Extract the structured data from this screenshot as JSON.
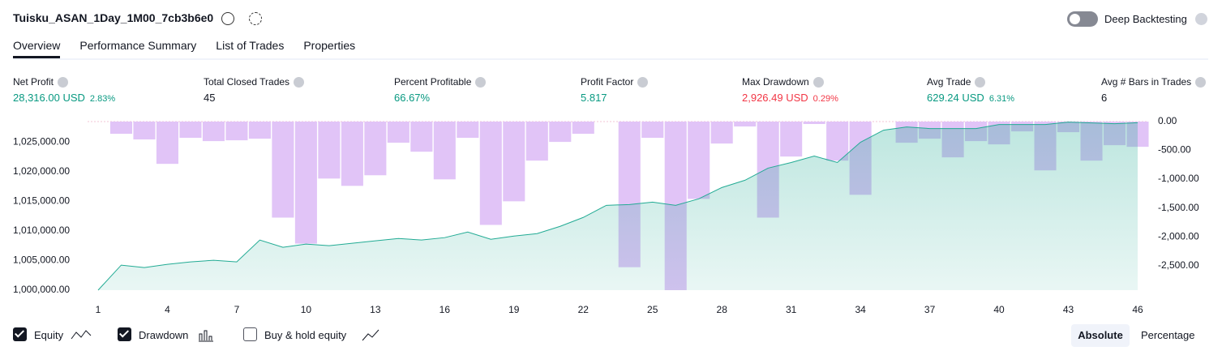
{
  "header": {
    "title": "Tuisku_ASAN_1Day_1M00_7cb3b6e0",
    "deep_backtesting": "Deep Backtesting"
  },
  "tabs": [
    "Overview",
    "Performance Summary",
    "List of Trades",
    "Properties"
  ],
  "metrics": [
    {
      "label": "Net Profit",
      "value": "28,316.00 USD",
      "percent": "2.83%",
      "color": "#089981"
    },
    {
      "label": "Total Closed Trades",
      "value": "45",
      "color": "#131722"
    },
    {
      "label": "Percent Profitable",
      "value": "66.67%",
      "color": "#089981"
    },
    {
      "label": "Profit Factor",
      "value": "5.817",
      "color": "#089981"
    },
    {
      "label": "Max Drawdown",
      "value": "2,926.49 USD",
      "percent": "0.29%",
      "color": "#f23645"
    },
    {
      "label": "Avg Trade",
      "value": "629.24 USD",
      "percent": "6.31%",
      "color": "#089981"
    },
    {
      "label": "Avg # Bars in Trades",
      "value": "6",
      "color": "#131722"
    }
  ],
  "chart_data": {
    "type": "combo",
    "x": [
      1,
      2,
      3,
      4,
      5,
      6,
      7,
      8,
      9,
      10,
      11,
      12,
      13,
      14,
      15,
      16,
      17,
      18,
      19,
      20,
      21,
      22,
      23,
      24,
      25,
      26,
      27,
      28,
      29,
      30,
      31,
      32,
      33,
      34,
      35,
      36,
      37,
      38,
      39,
      40,
      41,
      42,
      43,
      44,
      45,
      46
    ],
    "xlim": [
      1,
      46
    ],
    "xticks": [
      1,
      4,
      7,
      10,
      13,
      16,
      19,
      22,
      25,
      28,
      31,
      34,
      37,
      40,
      43,
      46
    ],
    "ylim": [
      1000000,
      1028500
    ],
    "yticks": [
      {
        "value": 1000000,
        "label": "1,000,000.00"
      },
      {
        "value": 1005000,
        "label": "1,005,000.00"
      },
      {
        "value": 1010000,
        "label": "1,010,000.00"
      },
      {
        "value": 1015000,
        "label": "1,015,000.00"
      },
      {
        "value": 1020000,
        "label": "1,020,000.00"
      },
      {
        "value": 1025000,
        "label": "1,025,000.00"
      }
    ],
    "y2lim": [
      -2926.49,
      0
    ],
    "y2ticks": [
      {
        "value": 0,
        "label": "0.00"
      },
      {
        "value": -500,
        "label": "-500.00"
      },
      {
        "value": -1000,
        "label": "-1,000.00"
      },
      {
        "value": -1500,
        "label": "-1,500.00"
      },
      {
        "value": -2000,
        "label": "-2,000.00"
      },
      {
        "value": -2500,
        "label": "-2,500.00"
      }
    ],
    "series": [
      {
        "name": "Equity",
        "type": "line",
        "color": "#22ab94",
        "axis": "y",
        "values": [
          1000000,
          1004235,
          1003825,
          1004372,
          1004781,
          1005055,
          1004781,
          1008470,
          1007240,
          1007787,
          1007514,
          1007923,
          1008333,
          1008743,
          1008470,
          1008880,
          1009836,
          1008607,
          1009153,
          1009563,
          1010792,
          1012295,
          1014344,
          1014481,
          1014891,
          1014344,
          1015437,
          1017350,
          1018579,
          1020628,
          1021585,
          1022678,
          1021585,
          1025000,
          1027049,
          1027596,
          1027322,
          1027322,
          1027322,
          1028005,
          1028005,
          1028005,
          1028415,
          1028279,
          1028142,
          1028316
        ]
      },
      {
        "name": "Drawdown",
        "type": "bar",
        "color": "#e1c4f7",
        "axis": "y2",
        "values": [
          0,
          -212,
          -310,
          -734,
          -282,
          -339,
          -325,
          -297,
          -1667,
          -2119,
          -989,
          -1116,
          -932,
          -367,
          -523,
          -1003,
          -282,
          -1794,
          -1384,
          -678,
          -353,
          -212,
          0,
          -2528,
          -282,
          -2926.49,
          -1342,
          -381,
          -85,
          -1667,
          -607,
          -42,
          -678,
          -1271,
          0,
          -367,
          -297,
          -621,
          -339,
          -396,
          -170,
          -847,
          -184,
          -678,
          -410,
          -438
        ]
      }
    ]
  },
  "controls": {
    "buy_hold": "Buy & hold equity",
    "absolute": "Absolute",
    "percentage": "Percentage"
  }
}
